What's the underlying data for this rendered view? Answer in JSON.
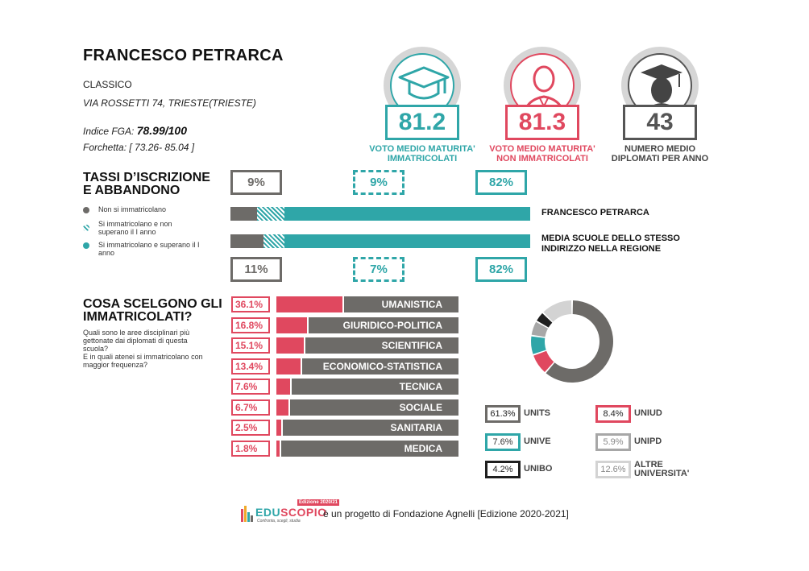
{
  "school": {
    "name": "FRANCESCO PETRARCA",
    "type": "CLASSICO",
    "address": "VIA ROSSETTI 74, TRIESTE(TRIESTE)",
    "fga_label": "Indice FGA:",
    "fga_value": "78.99/100",
    "forchetta_label": "Forchetta:",
    "forchetta_value": "[ 73.26- 85.04 ]"
  },
  "stats": [
    {
      "value": "81.2",
      "label_line1": "VOTO MEDIO MATURITA'",
      "label_line2": "IMMATRICOLATI",
      "color": "#2fa6a8",
      "icon": "graduation-cap-icon"
    },
    {
      "value": "81.3",
      "label_line1": "VOTO MEDIO MATURITA'",
      "label_line2": "NON IMMATRICOLATI",
      "color": "#e0485f",
      "icon": "person-icon"
    },
    {
      "value": "43",
      "label_line1": "NUMERO MEDIO",
      "label_line2": "DIPLOMATI PER ANNO",
      "color": "#555555",
      "icon": "graduate-icon"
    }
  ],
  "enrollment": {
    "title_line1": "TASSI D’ISCRIZIONE",
    "title_line2": "E ABBANDONO",
    "legend": [
      {
        "label_line1": "Non si immatricolano",
        "label_line2": "",
        "color": "#6d6b68"
      },
      {
        "label_line1": "Si immatricolano e non",
        "label_line2": "superano il I anno",
        "color": "#2fa6a8",
        "pattern": "striped"
      },
      {
        "label_line1": "Si immatricolano e superano il I",
        "label_line2": "anno",
        "color": "#2fa6a8"
      }
    ],
    "school_row": {
      "label": "FRANCESCO PETRARCA",
      "not_enrolled": "9%",
      "dropped": "9%",
      "passed": "82%",
      "values": [
        9,
        9,
        82
      ]
    },
    "region_row": {
      "label_line1": "MEDIA SCUOLE DELLO STESSO",
      "label_line2": "INDIRIZZO NELLA REGIONE",
      "not_enrolled": "11%",
      "dropped": "7%",
      "passed": "82%",
      "values": [
        11,
        7,
        82
      ]
    }
  },
  "choices": {
    "title_line1": "COSA SCELGONO GLI",
    "title_line2": "IMMATRICOLATI?",
    "desc_lines": [
      "Quali sono le aree disciplinari più",
      "gettonate dai diplomati di questa",
      "scuola?",
      "E in quali atenei si immatricolano con",
      "maggior frequenza?"
    ],
    "areas": [
      {
        "pct": "36.1%",
        "name": "UMANISTICA",
        "value": 36.1
      },
      {
        "pct": "16.8%",
        "name": "GIURIDICO-POLITICA",
        "value": 16.8
      },
      {
        "pct": "15.1%",
        "name": "SCIENTIFICA",
        "value": 15.1
      },
      {
        "pct": "13.4%",
        "name": "ECONOMICO-STATISTICA",
        "value": 13.4
      },
      {
        "pct": "7.6%",
        "name": "TECNICA",
        "value": 7.6
      },
      {
        "pct": "6.7%",
        "name": "SOCIALE",
        "value": 6.7
      },
      {
        "pct": "2.5%",
        "name": "SANITARIA",
        "value": 2.5
      },
      {
        "pct": "1.8%",
        "name": "MEDICA",
        "value": 1.8
      }
    ]
  },
  "universities": [
    {
      "pct": "61.3%",
      "name_line1": "UNITS",
      "name_line2": "",
      "value": 61.3,
      "color": "#6d6b68"
    },
    {
      "pct": "8.4%",
      "name_line1": "UNIUD",
      "name_line2": "",
      "value": 8.4,
      "color": "#e0485f"
    },
    {
      "pct": "7.6%",
      "name_line1": "UNIVE",
      "name_line2": "",
      "value": 7.6,
      "color": "#2fa6a8"
    },
    {
      "pct": "5.9%",
      "name_line1": "UNIPD",
      "name_line2": "",
      "value": 5.9,
      "color": "#a7a7a7"
    },
    {
      "pct": "4.2%",
      "name_line1": "UNIBO",
      "name_line2": "",
      "value": 4.2,
      "color": "#1f1f1f"
    },
    {
      "pct": "12.6%",
      "name_line1": "ALTRE",
      "name_line2": "UNIVERSITA'",
      "value": 12.6,
      "color": "#d3d3d3"
    }
  ],
  "footer": {
    "logo_badge": "Edizione 2020/21",
    "logo_edu": "EDU",
    "logo_scopio": "SCOPIO",
    "logo_tagline": "Confronta, scegli, studia",
    "text": "è un progetto di Fondazione Agnelli [Edizione 2020-2021]"
  }
}
